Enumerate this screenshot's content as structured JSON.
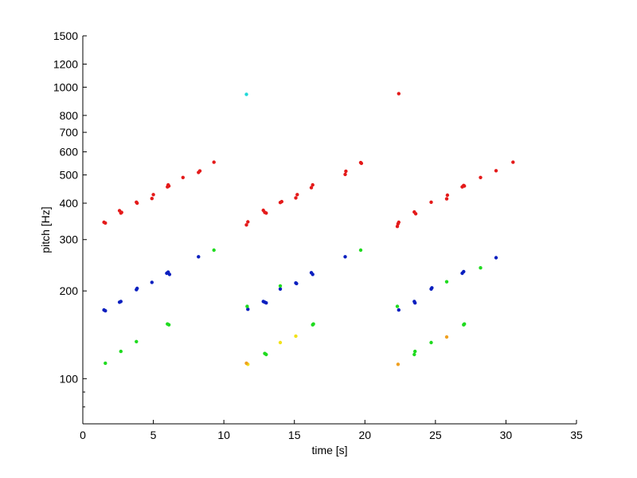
{
  "chart_data": {
    "type": "scatter",
    "title": "",
    "xlabel": "time [s]",
    "ylabel": "pitch [Hz]",
    "xlim": [
      0,
      35
    ],
    "ylim": [
      70,
      1500
    ],
    "y_scale": "log",
    "grid": false,
    "legend": "none",
    "x_ticks": [
      0,
      5,
      10,
      15,
      20,
      25,
      30,
      35
    ],
    "x_tick_labels": [
      "0",
      "5",
      "10",
      "15",
      "20",
      "25",
      "30",
      "35"
    ],
    "y_ticks": [
      100,
      200,
      300,
      400,
      500,
      600,
      700,
      800,
      1000,
      1200,
      1500
    ],
    "y_tick_labels": [
      "100",
      "200",
      "300",
      "400",
      "500",
      "600",
      "700",
      "800",
      "1000",
      "1200",
      "1500"
    ],
    "y_minor_ticks": [
      70,
      80,
      90
    ],
    "colors": {
      "red": "#e41a1a",
      "blue": "#0a1fbf",
      "green": "#1fdb1f",
      "cyan": "#1fd8d8",
      "yellow": "#f2e21a",
      "orange": "#f0a020",
      "axis": "#000000"
    },
    "series": [
      {
        "color": "red",
        "points": [
          [
            1.5,
            344
          ],
          [
            1.6,
            342
          ],
          [
            2.6,
            377
          ],
          [
            2.7,
            370
          ],
          [
            2.75,
            372
          ],
          [
            3.8,
            403
          ],
          [
            3.85,
            400
          ],
          [
            4.9,
            415
          ],
          [
            5.0,
            428
          ],
          [
            6.0,
            455
          ],
          [
            6.05,
            462
          ],
          [
            6.1,
            458
          ],
          [
            7.1,
            490
          ],
          [
            8.2,
            510
          ],
          [
            8.3,
            516
          ],
          [
            9.3,
            553
          ],
          [
            11.6,
            337
          ],
          [
            11.7,
            345
          ],
          [
            12.8,
            378
          ],
          [
            12.9,
            372
          ],
          [
            13.0,
            370
          ],
          [
            14.0,
            402
          ],
          [
            14.1,
            405
          ],
          [
            15.1,
            417
          ],
          [
            15.2,
            428
          ],
          [
            16.2,
            452
          ],
          [
            16.3,
            462
          ],
          [
            18.6,
            502
          ],
          [
            18.65,
            515
          ],
          [
            19.7,
            551
          ],
          [
            19.75,
            548
          ],
          [
            22.3,
            333
          ],
          [
            22.35,
            340
          ],
          [
            22.4,
            344
          ],
          [
            23.5,
            373
          ],
          [
            23.6,
            368
          ],
          [
            24.7,
            403
          ],
          [
            25.8,
            414
          ],
          [
            25.85,
            426
          ],
          [
            26.9,
            455
          ],
          [
            27.0,
            460
          ],
          [
            27.05,
            458
          ],
          [
            28.2,
            490
          ],
          [
            29.3,
            517
          ],
          [
            30.5,
            553
          ],
          [
            22.4,
            950
          ]
        ]
      },
      {
        "color": "blue",
        "points": [
          [
            1.5,
            172
          ],
          [
            1.6,
            171
          ],
          [
            2.6,
            183
          ],
          [
            2.7,
            184
          ],
          [
            3.8,
            202
          ],
          [
            3.85,
            204
          ],
          [
            4.9,
            214
          ],
          [
            5.95,
            230
          ],
          [
            6.05,
            232
          ],
          [
            6.15,
            228
          ],
          [
            8.2,
            262
          ],
          [
            11.7,
            173
          ],
          [
            12.8,
            184
          ],
          [
            12.9,
            183
          ],
          [
            13.0,
            182
          ],
          [
            14.0,
            203
          ],
          [
            15.1,
            213
          ],
          [
            15.15,
            212
          ],
          [
            16.2,
            231
          ],
          [
            16.3,
            228
          ],
          [
            18.6,
            262
          ],
          [
            22.4,
            172
          ],
          [
            23.5,
            184
          ],
          [
            23.55,
            182
          ],
          [
            24.7,
            203
          ],
          [
            24.75,
            205
          ],
          [
            26.9,
            230
          ],
          [
            27.0,
            233
          ],
          [
            29.3,
            260
          ]
        ]
      },
      {
        "color": "green",
        "points": [
          [
            1.6,
            113
          ],
          [
            2.7,
            124
          ],
          [
            3.8,
            134
          ],
          [
            6.0,
            154
          ],
          [
            6.1,
            153
          ],
          [
            9.3,
            276
          ],
          [
            11.65,
            177
          ],
          [
            12.9,
            122
          ],
          [
            13.0,
            121
          ],
          [
            14.0,
            208
          ],
          [
            16.3,
            153
          ],
          [
            16.35,
            154
          ],
          [
            19.7,
            276
          ],
          [
            22.3,
            177
          ],
          [
            23.5,
            121
          ],
          [
            23.55,
            124
          ],
          [
            24.7,
            133
          ],
          [
            25.8,
            215
          ],
          [
            27.0,
            153
          ],
          [
            27.05,
            154
          ],
          [
            28.2,
            240
          ]
        ]
      },
      {
        "color": "cyan",
        "points": [
          [
            11.6,
            945
          ]
        ]
      },
      {
        "color": "yellow",
        "points": [
          [
            11.7,
            112
          ],
          [
            14.0,
            133
          ],
          [
            15.1,
            140
          ]
        ]
      },
      {
        "color": "orange",
        "points": [
          [
            11.6,
            113
          ],
          [
            22.35,
            112
          ],
          [
            25.8,
            139
          ]
        ]
      }
    ]
  }
}
